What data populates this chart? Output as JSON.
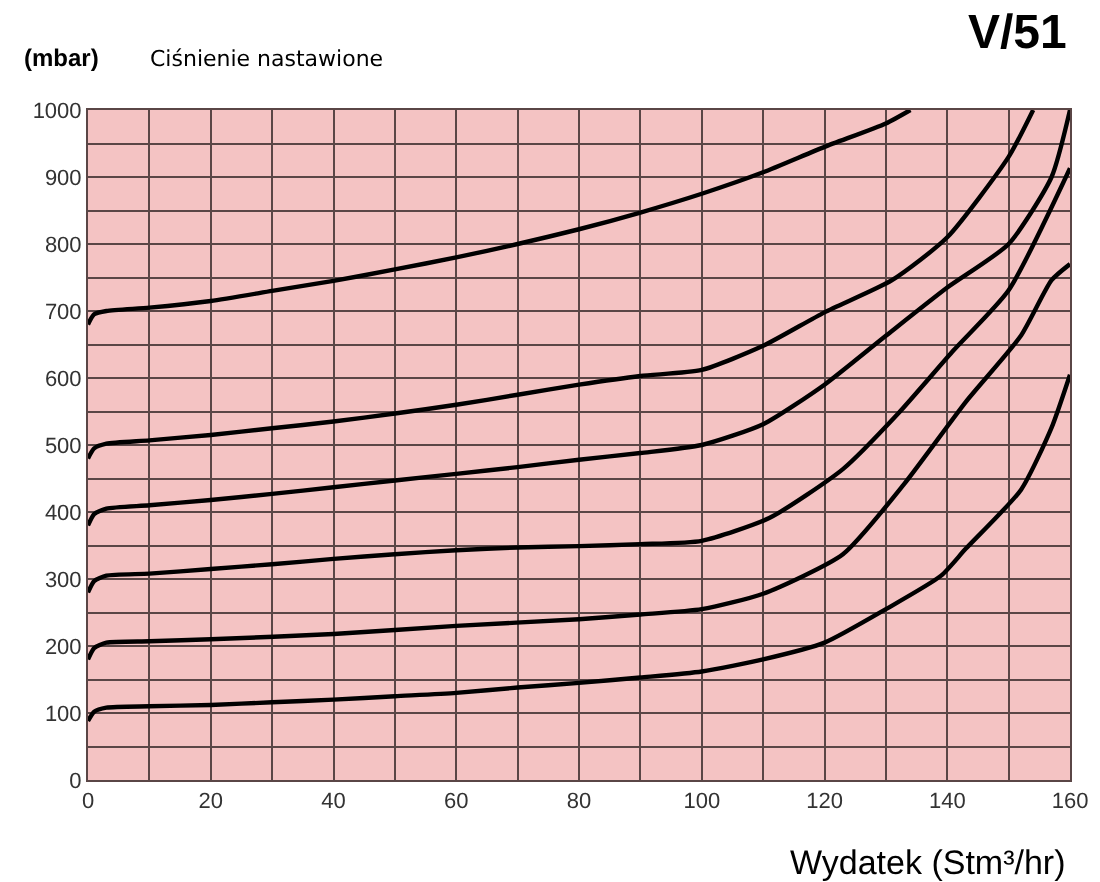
{
  "chart_data": {
    "type": "line",
    "title": "V/51",
    "subtitle": "Ciśnienie nastawione",
    "ylabel": "(mbar)",
    "xlabel": "Wydatek (Stm³/hr)",
    "xlim": [
      0,
      160
    ],
    "ylim": [
      0,
      1000
    ],
    "xticks": [
      0,
      {
        "value": 10,
        "label": null
      },
      20,
      {
        "value": 30,
        "label": null
      },
      40,
      {
        "value": 50,
        "label": null
      },
      60,
      {
        "value": 70,
        "label": null
      },
      80,
      {
        "value": 90,
        "label": null
      },
      100,
      {
        "value": 110,
        "label": null
      },
      120,
      {
        "value": 130,
        "label": null
      },
      140,
      {
        "value": 150,
        "label": null
      },
      160
    ],
    "yticks": [
      0,
      {
        "value": 50,
        "label": null
      },
      100,
      {
        "value": 150,
        "label": null
      },
      200,
      {
        "value": 250,
        "label": null
      },
      300,
      {
        "value": 350,
        "label": null
      },
      400,
      {
        "value": 450,
        "label": null
      },
      500,
      {
        "value": 550,
        "label": null
      },
      600,
      {
        "value": 650,
        "label": null
      },
      700,
      {
        "value": 750,
        "label": null
      },
      800,
      {
        "value": 850,
        "label": null
      },
      900,
      {
        "value": 950,
        "label": null
      },
      1000
    ],
    "grid": true,
    "marker": "none",
    "line_style": "solid",
    "series": [
      {
        "color": "#000000",
        "x": [
          0,
          1,
          3,
          10,
          20,
          30,
          40,
          50,
          60,
          70,
          80,
          90,
          100,
          110,
          120,
          130,
          134
        ],
        "values": [
          680,
          695,
          700,
          705,
          715,
          730,
          745,
          762,
          780,
          800,
          822,
          847,
          875,
          907,
          945,
          980,
          1000
        ]
      },
      {
        "color": "#000000",
        "x": [
          0,
          1,
          3,
          10,
          20,
          30,
          40,
          50,
          60,
          70,
          80,
          90,
          100,
          110,
          120,
          131,
          140,
          150,
          154
        ],
        "values": [
          480,
          495,
          502,
          507,
          515,
          525,
          535,
          547,
          560,
          575,
          590,
          603,
          612,
          648,
          698,
          746,
          810,
          930,
          1000
        ]
      },
      {
        "color": "#000000",
        "x": [
          0,
          1,
          3,
          10,
          20,
          30,
          40,
          50,
          60,
          70,
          80,
          90,
          100,
          110,
          120,
          130,
          140,
          150,
          157,
          160
        ],
        "values": [
          380,
          397,
          405,
          410,
          418,
          427,
          437,
          447,
          457,
          467,
          478,
          488,
          500,
          531,
          590,
          663,
          735,
          800,
          900,
          1000
        ]
      },
      {
        "color": "#000000",
        "x": [
          0,
          1,
          3,
          10,
          20,
          30,
          40,
          50,
          60,
          70,
          80,
          90,
          100,
          111,
          123,
          132,
          141,
          150,
          160
        ],
        "values": [
          280,
          297,
          305,
          308,
          315,
          322,
          330,
          337,
          343,
          347,
          349,
          352,
          357,
          391,
          464,
          547,
          641,
          731,
          913
        ]
      },
      {
        "color": "#000000",
        "x": [
          0,
          1,
          3,
          10,
          20,
          40,
          60,
          80,
          90,
          100,
          110,
          123,
          133,
          143,
          152,
          157,
          160
        ],
        "values": [
          180,
          197,
          205,
          207,
          210,
          218,
          230,
          240,
          247,
          255,
          278,
          337,
          442,
          564,
          663,
          746,
          770
        ]
      },
      {
        "color": "#000000",
        "x": [
          0,
          1,
          3,
          10,
          20,
          30,
          40,
          50,
          60,
          70,
          80,
          90,
          100,
          110,
          120,
          130,
          139,
          143,
          152,
          157,
          160
        ],
        "values": [
          88,
          102,
          108,
          110,
          112,
          116,
          120,
          125,
          130,
          138,
          145,
          153,
          162,
          180,
          205,
          255,
          305,
          345,
          433,
          526,
          605
        ]
      }
    ]
  }
}
